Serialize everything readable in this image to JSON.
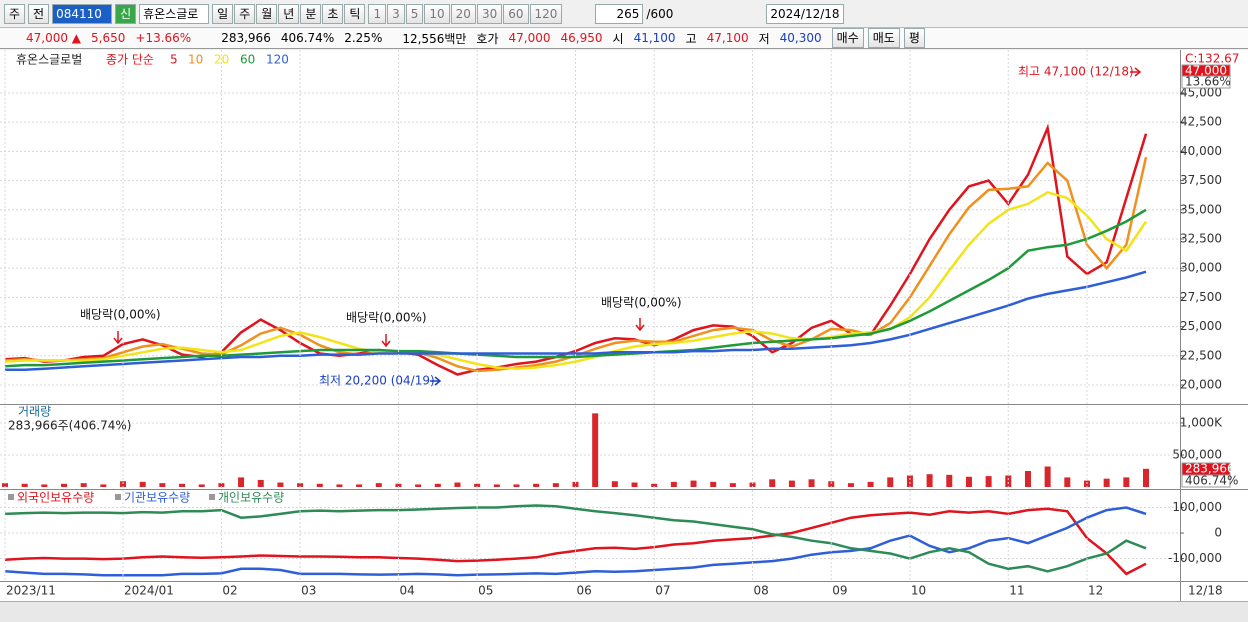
{
  "toolbar": {
    "market": "주",
    "prefix": "전",
    "code": "084110",
    "badge": "신",
    "name": "휴온스글로",
    "periods": [
      "일",
      "주",
      "월",
      "년",
      "분",
      "초",
      "틱"
    ],
    "intervals": [
      "1",
      "3",
      "5",
      "10",
      "20",
      "30",
      "60",
      "120"
    ],
    "count": "265",
    "count_max": "/600",
    "date": "2024/12/18"
  },
  "quote_bar": {
    "price": "47,000 ▲",
    "change": "5,650",
    "change_pct": "+13.66%",
    "volume": "283,966",
    "volume_ratio": "406.74%",
    "turnover": "2.25%",
    "amount": "12,556백만",
    "ask_label": "호가",
    "ask": "47,000",
    "bid": "46,950",
    "open_label": "시",
    "open": "41,100",
    "high_label": "고",
    "high": "47,100",
    "low_label": "저",
    "low": "40,300",
    "buttons": [
      "매수",
      "매도",
      "평"
    ]
  },
  "chart_data": [
    {
      "type": "line",
      "title": "휴온스글로벌",
      "legend_title": "종가 단순",
      "ylim": [
        18460,
        48420
      ],
      "yticks": [
        {
          "value": 20000,
          "label": "20,000"
        },
        {
          "value": 22500,
          "label": "22,500"
        },
        {
          "value": 25000,
          "label": "25,000"
        },
        {
          "value": 27500,
          "label": "27,500"
        },
        {
          "value": 30000,
          "label": "30,000"
        },
        {
          "value": 32500,
          "label": "32,500"
        },
        {
          "value": 35000,
          "label": "35,000"
        },
        {
          "value": 37500,
          "label": "37,500"
        },
        {
          "value": 40000,
          "label": "40,000"
        },
        {
          "value": 42500,
          "label": "42,500"
        },
        {
          "value": 45000,
          "label": "45,000"
        }
      ],
      "grid": true,
      "series": [
        {
          "name": "5",
          "color": "#e0141e",
          "values": [
            22200,
            22300,
            22000,
            22100,
            22400,
            22500,
            23500,
            23900,
            23400,
            22600,
            22400,
            22800,
            24500,
            25600,
            24700,
            23600,
            22700,
            22500,
            22700,
            23000,
            22800,
            22600,
            21700,
            20900,
            21300,
            21500,
            21800,
            22000,
            22400,
            22900,
            23600,
            24000,
            23900,
            23400,
            23900,
            24700,
            25100,
            25000,
            24200,
            22800,
            23600,
            24900,
            25500,
            24400,
            24300,
            26800,
            29500,
            32500,
            35000,
            37000,
            37500,
            35500,
            38000,
            42000,
            31000,
            29500,
            30500,
            36000,
            41500
          ]
        },
        {
          "name": "10",
          "color": "#f0901e",
          "values": [
            22100,
            22200,
            22100,
            22100,
            22200,
            22300,
            22800,
            23300,
            23500,
            23100,
            22700,
            22600,
            23400,
            24400,
            24900,
            24300,
            23400,
            22800,
            22600,
            22800,
            22900,
            22800,
            22300,
            21600,
            21200,
            21300,
            21500,
            21700,
            22000,
            22500,
            23100,
            23600,
            23800,
            23700,
            23700,
            24200,
            24700,
            24900,
            24700,
            23800,
            23300,
            23900,
            24800,
            24700,
            24300,
            25300,
            27500,
            30200,
            32900,
            35200,
            36700,
            36800,
            37000,
            39000,
            37500,
            32000,
            30000,
            32000,
            39500
          ]
        },
        {
          "name": "20",
          "color": "#f2e416",
          "values": [
            22000,
            22100,
            22100,
            22100,
            22100,
            22200,
            22500,
            22800,
            23100,
            23200,
            23000,
            22800,
            23000,
            23600,
            24200,
            24500,
            24100,
            23600,
            23100,
            22800,
            22800,
            22800,
            22600,
            22200,
            21800,
            21500,
            21400,
            21500,
            21700,
            22000,
            22400,
            22900,
            23300,
            23500,
            23600,
            23800,
            24100,
            24400,
            24600,
            24400,
            24000,
            23900,
            24100,
            24400,
            24500,
            24800,
            25800,
            27500,
            29800,
            32000,
            33800,
            35000,
            35500,
            36500,
            36000,
            34500,
            32500,
            31500,
            34000
          ]
        },
        {
          "name": "60",
          "color": "#1f9a3a",
          "values": [
            21600,
            21700,
            21700,
            21800,
            21900,
            22000,
            22100,
            22200,
            22300,
            22400,
            22500,
            22500,
            22600,
            22700,
            22800,
            22900,
            23000,
            23000,
            23000,
            23000,
            22900,
            22900,
            22800,
            22700,
            22600,
            22500,
            22400,
            22400,
            22400,
            22400,
            22500,
            22600,
            22700,
            22800,
            22900,
            23000,
            23200,
            23400,
            23600,
            23700,
            23800,
            23900,
            24000,
            24200,
            24400,
            24800,
            25500,
            26300,
            27200,
            28100,
            29000,
            30000,
            31500,
            31800,
            32000,
            32500,
            33200,
            34000,
            35000
          ]
        },
        {
          "name": "120",
          "color": "#2f5fd8",
          "values": [
            21300,
            21300,
            21400,
            21500,
            21600,
            21700,
            21800,
            21900,
            22000,
            22100,
            22200,
            22300,
            22400,
            22400,
            22500,
            22500,
            22600,
            22600,
            22600,
            22700,
            22700,
            22700,
            22700,
            22700,
            22700,
            22700,
            22700,
            22700,
            22700,
            22700,
            22700,
            22800,
            22800,
            22800,
            22800,
            22900,
            22900,
            23000,
            23000,
            23100,
            23100,
            23200,
            23300,
            23400,
            23600,
            23900,
            24300,
            24800,
            25300,
            25800,
            26300,
            26800,
            27400,
            27800,
            28100,
            28400,
            28800,
            29200,
            29700
          ]
        }
      ],
      "annotations": [
        "배당락(0,00%)",
        "배당락(0,00%)",
        "배당락(0,00%)",
        "최저 20,200 (04/19)",
        "최고 47,100 (12/18)"
      ],
      "side_labels": [
        "C:132.67",
        "47,000",
        "13.66%"
      ]
    },
    {
      "type": "bar",
      "title": "거래량",
      "subtitle": "283,966주(406.74%)",
      "ylim": [
        0,
        1265000
      ],
      "yticks": [
        {
          "value": 500000,
          "label": "500,000"
        },
        {
          "value": 1000000,
          "label": "1,000K"
        }
      ],
      "color": "#d8262b",
      "values": [
        60000,
        50000,
        40000,
        50000,
        60000,
        40000,
        90000,
        80000,
        60000,
        50000,
        40000,
        60000,
        150000,
        110000,
        70000,
        60000,
        50000,
        40000,
        40000,
        60000,
        50000,
        40000,
        50000,
        70000,
        50000,
        40000,
        40000,
        50000,
        60000,
        80000,
        1150000,
        90000,
        70000,
        50000,
        80000,
        100000,
        80000,
        60000,
        70000,
        120000,
        100000,
        120000,
        90000,
        60000,
        80000,
        150000,
        180000,
        200000,
        190000,
        160000,
        170000,
        180000,
        250000,
        320000,
        150000,
        100000,
        130000,
        150000,
        283966
      ],
      "side_labels": [
        "283,966",
        "406.74%"
      ]
    },
    {
      "type": "line",
      "ylim": [
        -184000,
        149000
      ],
      "yticks": [
        {
          "value": 100000,
          "label": "100,000"
        },
        0,
        {
          "value": -100000,
          "label": "-100,000"
        }
      ],
      "categories": [
        "2023/11",
        null,
        null,
        null,
        null,
        null,
        "2024/01",
        null,
        null,
        null,
        null,
        "02",
        null,
        null,
        null,
        "03",
        null,
        null,
        null,
        null,
        "04",
        null,
        null,
        null,
        "05",
        null,
        null,
        null,
        null,
        "06",
        null,
        null,
        null,
        "07",
        null,
        null,
        null,
        null,
        "08",
        null,
        null,
        null,
        "09",
        null,
        null,
        null,
        "10",
        null,
        null,
        null,
        null,
        "11",
        null,
        null,
        null,
        "12",
        null,
        null,
        null
      ],
      "x_end_label": "12/18",
      "series": [
        {
          "name": "외국인보유수량",
          "color": "#e0141e",
          "values": [
            -105000,
            -100000,
            -98000,
            -100000,
            -100000,
            -102000,
            -100000,
            -95000,
            -92000,
            -95000,
            -97000,
            -95000,
            -92000,
            -88000,
            -90000,
            -92000,
            -92000,
            -93000,
            -95000,
            -95000,
            -98000,
            -100000,
            -105000,
            -110000,
            -108000,
            -105000,
            -100000,
            -95000,
            -80000,
            -70000,
            -60000,
            -58000,
            -62000,
            -55000,
            -45000,
            -40000,
            -30000,
            -25000,
            -20000,
            -10000,
            0,
            20000,
            40000,
            60000,
            70000,
            75000,
            80000,
            72000,
            85000,
            80000,
            85000,
            75000,
            90000,
            95000,
            85000,
            -20000,
            -80000,
            -160000,
            -120000
          ]
        },
        {
          "name": "기관보유수량",
          "color": "#2f5fd8",
          "values": [
            -150000,
            -155000,
            -160000,
            -160000,
            -162000,
            -165000,
            -165000,
            -165000,
            -165000,
            -160000,
            -160000,
            -158000,
            -140000,
            -140000,
            -145000,
            -160000,
            -160000,
            -160000,
            -162000,
            -163000,
            -162000,
            -160000,
            -162000,
            -165000,
            -163000,
            -162000,
            -160000,
            -158000,
            -160000,
            -155000,
            -150000,
            -152000,
            -150000,
            -145000,
            -140000,
            -135000,
            -125000,
            -120000,
            -115000,
            -110000,
            -100000,
            -85000,
            -75000,
            -70000,
            -60000,
            -30000,
            -10000,
            -50000,
            -75000,
            -60000,
            -30000,
            -20000,
            -40000,
            -10000,
            20000,
            60000,
            90000,
            100000,
            75000
          ]
        },
        {
          "name": "개인보유수량",
          "color": "#2e8b57",
          "values": [
            75000,
            78000,
            80000,
            78000,
            80000,
            80000,
            78000,
            82000,
            80000,
            85000,
            85000,
            90000,
            60000,
            65000,
            75000,
            85000,
            88000,
            85000,
            88000,
            90000,
            90000,
            92000,
            95000,
            98000,
            100000,
            100000,
            105000,
            108000,
            105000,
            95000,
            85000,
            78000,
            70000,
            60000,
            50000,
            45000,
            35000,
            25000,
            15000,
            -5000,
            -15000,
            -30000,
            -40000,
            -60000,
            -70000,
            -80000,
            -100000,
            -75000,
            -60000,
            -75000,
            -120000,
            -140000,
            -130000,
            -150000,
            -130000,
            -100000,
            -80000,
            -30000,
            -60000
          ]
        }
      ]
    }
  ]
}
